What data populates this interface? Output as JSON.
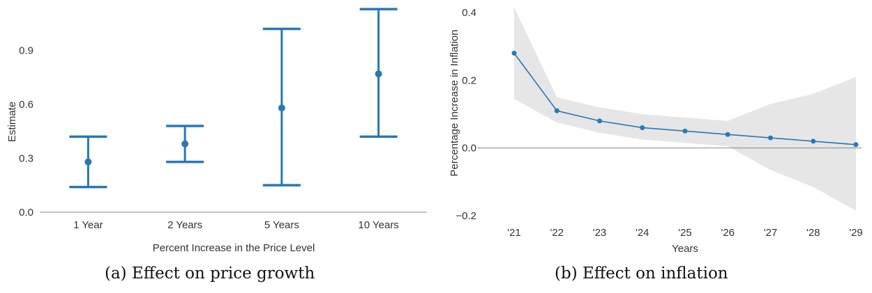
{
  "captions": {
    "a": "(a) Effect on price growth",
    "b": "(b) Effect on inflation"
  },
  "chart_data": [
    {
      "type": "scatter",
      "subtype": "point-with-error-bars",
      "xlabel": "Percent Increase in the Price Level",
      "ylabel": "Estimate",
      "categories": [
        "1 Year",
        "2 Years",
        "5 Years",
        "10 Years"
      ],
      "estimate": [
        0.28,
        0.38,
        0.58,
        0.77
      ],
      "ci_low": [
        0.14,
        0.28,
        0.15,
        0.42
      ],
      "ci_high": [
        0.42,
        0.48,
        1.02,
        1.13
      ],
      "yticks": [
        0.0,
        0.3,
        0.6,
        0.9
      ],
      "ytick_labels": [
        "0.0",
        "0.3",
        "0.6",
        "0.9"
      ],
      "ylim": [
        -0.02,
        1.15
      ],
      "reference_line": 0,
      "color": "#2878b5",
      "grid": false
    },
    {
      "type": "line",
      "subtype": "line-with-confidence-band",
      "xlabel": "Years",
      "ylabel": "Percentage Increase in Inflation",
      "x": [
        "'21",
        "'22",
        "'23",
        "'24",
        "'25",
        "'26",
        "'27",
        "'28",
        "'29"
      ],
      "y": [
        0.28,
        0.11,
        0.08,
        0.06,
        0.05,
        0.04,
        0.03,
        0.02,
        0.01
      ],
      "band_low": [
        0.145,
        0.075,
        0.045,
        0.025,
        0.015,
        0.005,
        -0.065,
        -0.115,
        -0.185
      ],
      "band_high": [
        0.415,
        0.15,
        0.12,
        0.1,
        0.09,
        0.08,
        0.13,
        0.16,
        0.21
      ],
      "yticks": [
        -0.2,
        0.0,
        0.2,
        0.4
      ],
      "ytick_labels": [
        "−0.2",
        "0.0",
        "0.2",
        "0.4"
      ],
      "ylim": [
        -0.2,
        0.4
      ],
      "reference_line": 0,
      "color": "#2878b5",
      "band_color": "#e6e6e6",
      "grid": false
    }
  ]
}
